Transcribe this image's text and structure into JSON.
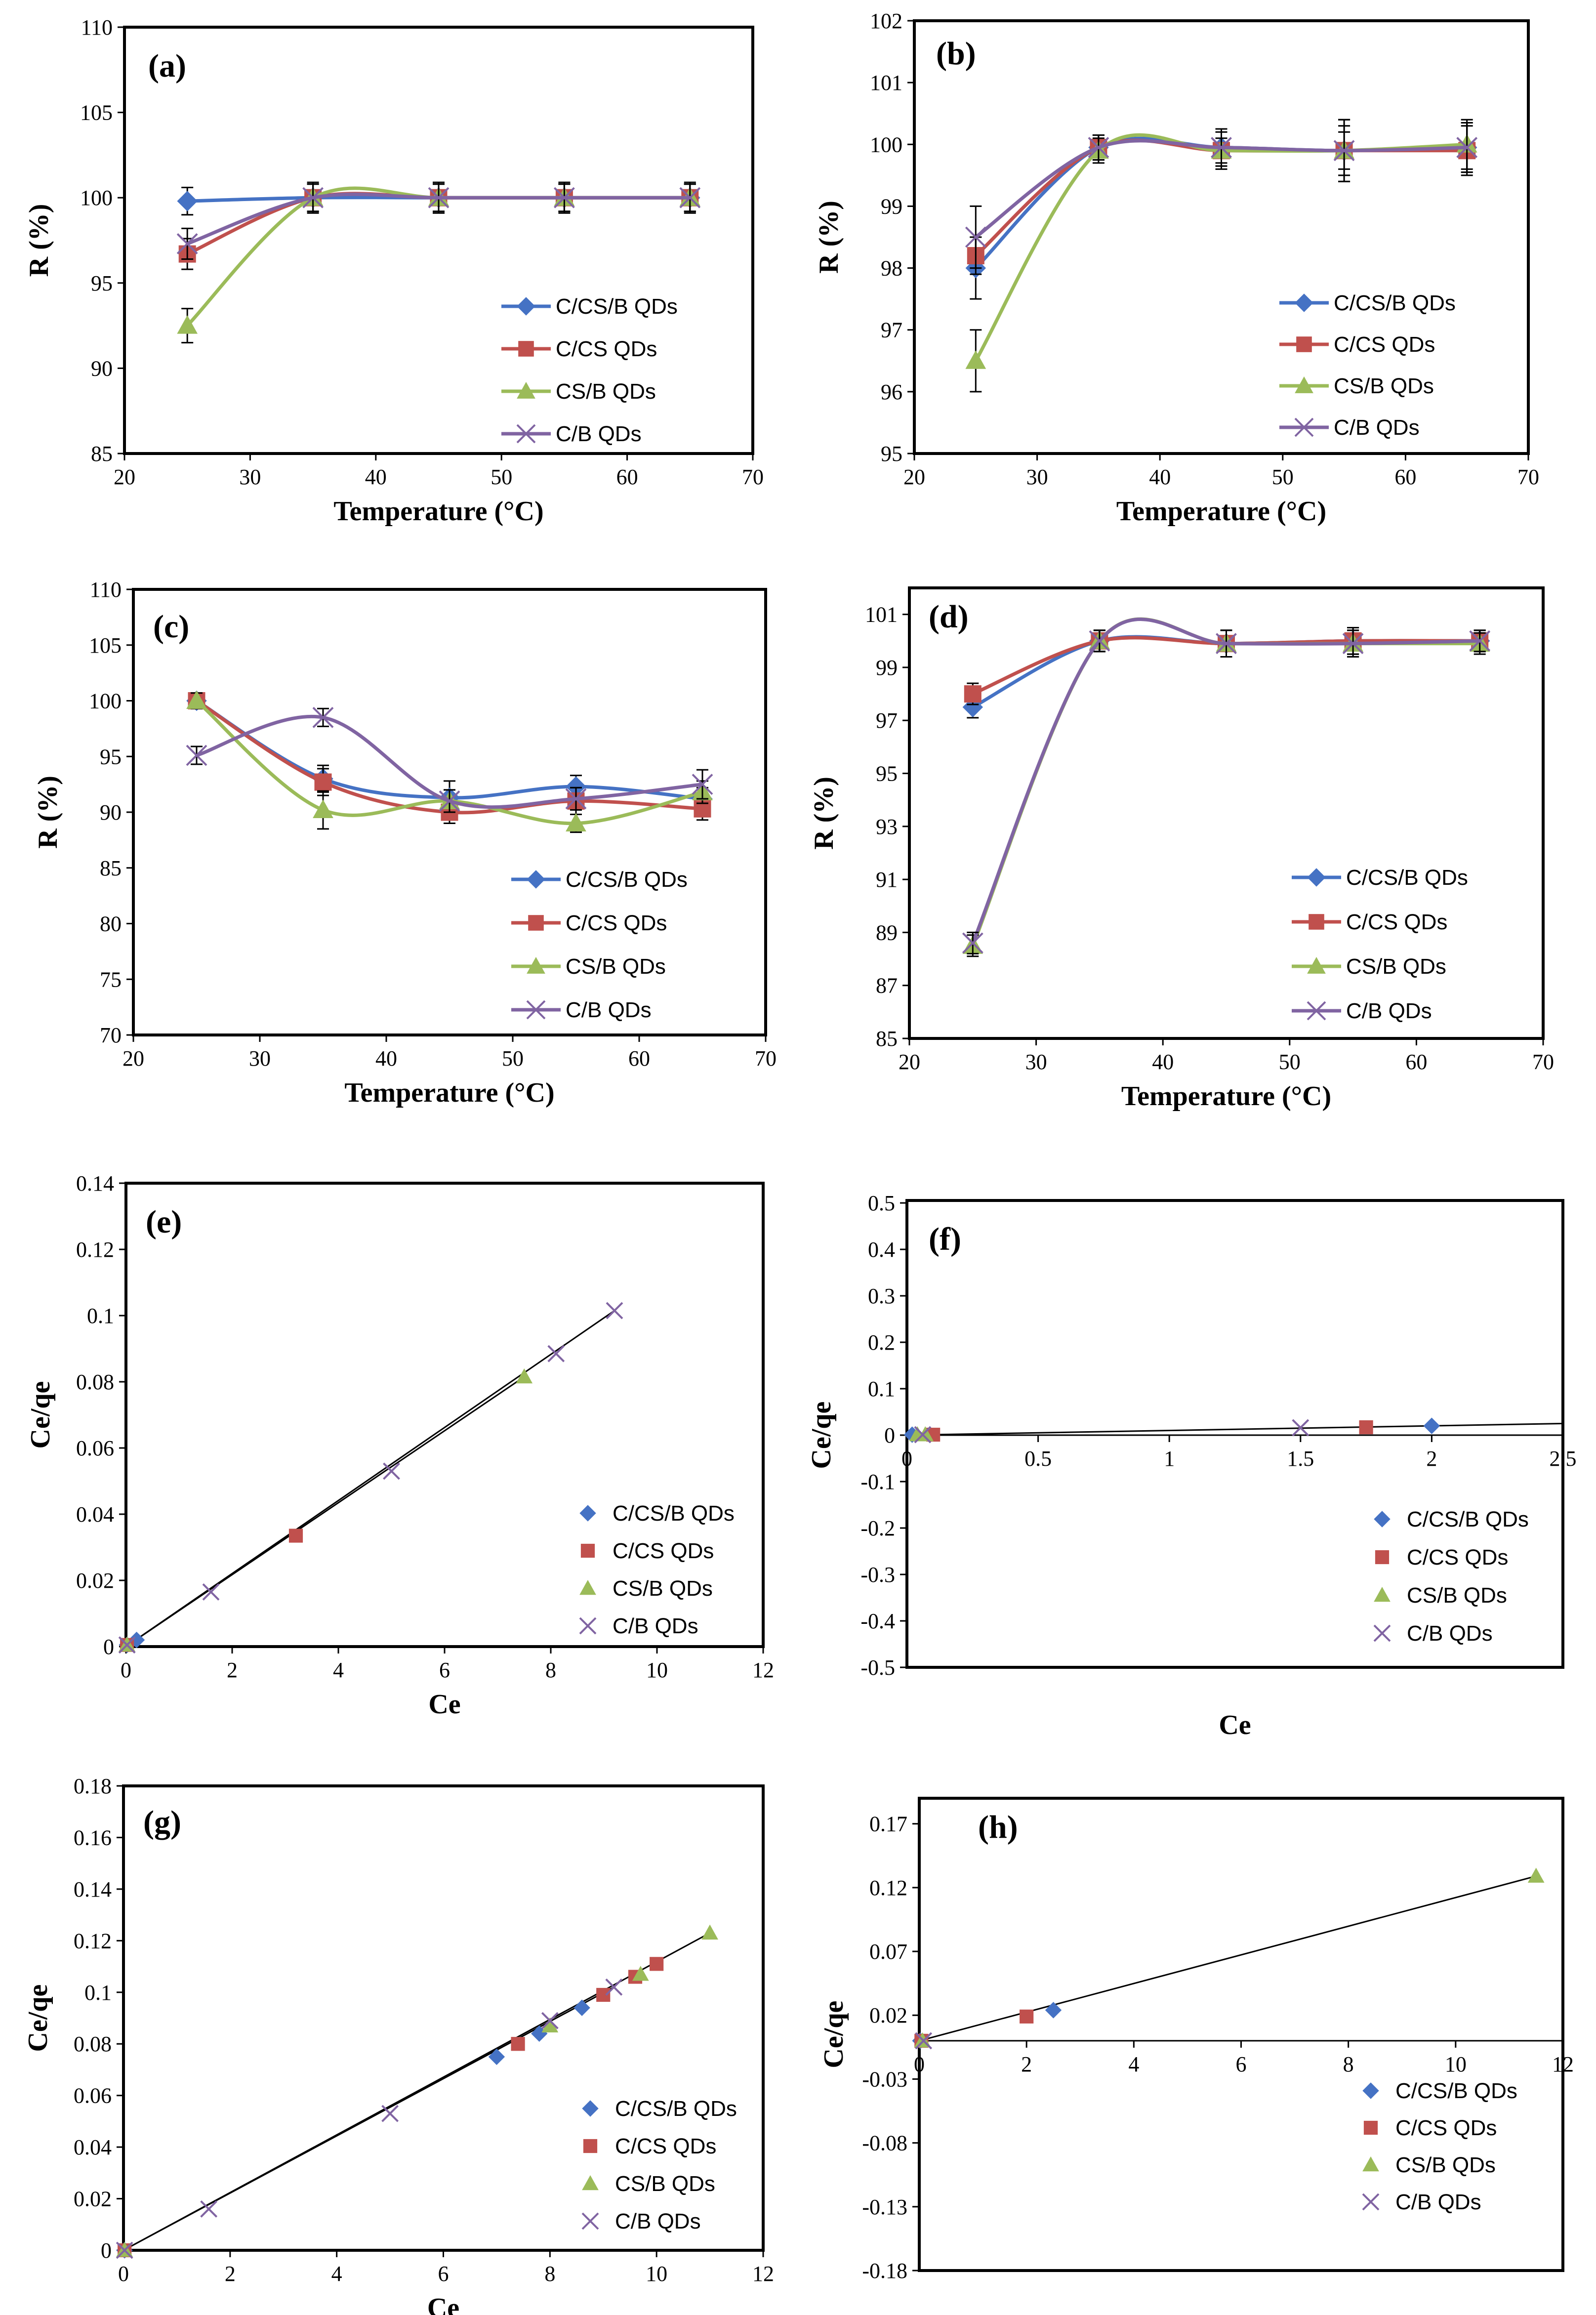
{
  "figure_title": "",
  "legend_labels": [
    "C/CS/B QDs",
    "C/CS QDs",
    "CS/B QDs",
    "C/B QDs"
  ],
  "series_colors": {
    "C/CS/B QDs": "#4572C4",
    "C/CS QDs": "#C0504D",
    "CS/B QDs": "#9BBB59",
    "C/B QDs": "#8064A2"
  },
  "chart_data": [
    {
      "id": "a",
      "panel_label": "(a)",
      "type": "line",
      "xlabel": "Temperature (°C)",
      "ylabel": "R (%)",
      "xlim": [
        20,
        70
      ],
      "ylim": [
        85,
        110
      ],
      "xticks": [
        "20",
        "30",
        "40",
        "50",
        "60",
        "70"
      ],
      "yticks": [
        "85",
        "90",
        "95",
        "100",
        "105",
        "110"
      ],
      "x": [
        25,
        35,
        45,
        55,
        65
      ],
      "series": [
        {
          "name": "C/CS/B QDs",
          "values": [
            99.8,
            100.0,
            100.0,
            100.0,
            100.0
          ],
          "err": [
            0.8,
            0.8,
            0.8,
            0.8,
            0.8
          ]
        },
        {
          "name": "C/CS QDs",
          "values": [
            96.7,
            100.0,
            100.0,
            100.0,
            100.0
          ],
          "err": [
            0.9,
            0.9,
            0.9,
            0.9,
            0.9
          ]
        },
        {
          "name": "CS/B QDs",
          "values": [
            92.5,
            100.0,
            100.0,
            100.0,
            100.0
          ],
          "err": [
            1.0,
            0.8,
            0.8,
            0.8,
            0.8
          ]
        },
        {
          "name": "C/B QDs",
          "values": [
            97.3,
            100.0,
            100.0,
            100.0,
            100.0
          ],
          "err": [
            0.9,
            0.8,
            0.8,
            0.8,
            0.8
          ]
        }
      ]
    },
    {
      "id": "b",
      "panel_label": "(b)",
      "type": "line",
      "xlabel": "Temperature (°C)",
      "ylabel": "R (%)",
      "xlim": [
        20,
        70
      ],
      "ylim": [
        95,
        102
      ],
      "xticks": [
        "20",
        "30",
        "40",
        "50",
        "60",
        "70"
      ],
      "yticks": [
        "95",
        "96",
        "97",
        "98",
        "99",
        "100",
        "101",
        "102"
      ],
      "x": [
        25,
        35,
        45,
        55,
        65
      ],
      "series": [
        {
          "name": "C/CS/B QDs",
          "values": [
            98.0,
            99.95,
            99.95,
            99.9,
            99.95
          ],
          "err": [
            0.5,
            0.2,
            0.3,
            0.5,
            0.4
          ]
        },
        {
          "name": "C/CS QDs",
          "values": [
            98.2,
            99.95,
            99.9,
            99.9,
            99.9
          ],
          "err": [
            0.3,
            0.2,
            0.2,
            0.4,
            0.4
          ]
        },
        {
          "name": "CS/B QDs",
          "values": [
            96.5,
            99.9,
            99.9,
            99.9,
            100.0
          ],
          "err": [
            0.5,
            0.2,
            0.3,
            0.3,
            0.4
          ]
        },
        {
          "name": "C/B QDs",
          "values": [
            98.5,
            99.95,
            99.95,
            99.9,
            99.95
          ],
          "err": [
            0.5,
            0.2,
            0.3,
            0.5,
            0.4
          ]
        }
      ]
    },
    {
      "id": "c",
      "panel_label": "(c)",
      "type": "line",
      "xlabel": "Temperature (°C)",
      "ylabel": "R (%)",
      "xlim": [
        20,
        70
      ],
      "ylim": [
        70,
        110
      ],
      "xticks": [
        "20",
        "30",
        "40",
        "50",
        "60",
        "70"
      ],
      "yticks": [
        "70",
        "75",
        "80",
        "85",
        "90",
        "95",
        "100",
        "105",
        "110"
      ],
      "x": [
        25,
        35,
        45,
        55,
        65
      ],
      "series": [
        {
          "name": "C/CS/B QDs",
          "values": [
            100.0,
            93.0,
            91.3,
            92.3,
            91.2
          ],
          "err": [
            0.7,
            1.2,
            1.5,
            1.0,
            1.0
          ]
        },
        {
          "name": "C/CS QDs",
          "values": [
            100.0,
            92.7,
            90.0,
            91.0,
            90.3
          ],
          "err": [
            0.7,
            1.2,
            1.0,
            1.2,
            1.0
          ]
        },
        {
          "name": "CS/B QDs",
          "values": [
            100.0,
            90.2,
            91.0,
            89.0,
            91.8
          ],
          "err": [
            0.7,
            1.7,
            1.0,
            0.8,
            1.0
          ]
        },
        {
          "name": "C/B QDs",
          "values": [
            95.1,
            98.5,
            91.0,
            91.2,
            92.5
          ],
          "err": [
            0.8,
            0.8,
            1.0,
            1.0,
            1.3
          ]
        }
      ]
    },
    {
      "id": "d",
      "panel_label": "(d)",
      "type": "line",
      "xlabel": "Temperature (°C)",
      "ylabel": "R (%)",
      "xlim": [
        20,
        70
      ],
      "ylim": [
        85,
        102
      ],
      "xticks": [
        "20",
        "30",
        "40",
        "50",
        "60",
        "70"
      ],
      "yticks": [
        "85",
        "87",
        "89",
        "91",
        "93",
        "95",
        "97",
        "99",
        "101"
      ],
      "x": [
        25,
        35,
        45,
        55,
        65
      ],
      "series": [
        {
          "name": "C/CS/B QDs",
          "values": [
            97.5,
            100.0,
            99.9,
            100.0,
            100.0
          ],
          "err": [
            0.4,
            0.4,
            0.5,
            0.5,
            0.4
          ]
        },
        {
          "name": "C/CS QDs",
          "values": [
            98.0,
            100.0,
            99.9,
            100.0,
            100.0
          ],
          "err": [
            0.4,
            0.4,
            0.5,
            0.5,
            0.4
          ]
        },
        {
          "name": "CS/B QDs",
          "values": [
            88.5,
            100.0,
            99.9,
            99.9,
            99.9
          ],
          "err": [
            0.4,
            0.4,
            0.5,
            0.5,
            0.4
          ]
        },
        {
          "name": "C/B QDs",
          "values": [
            88.6,
            100.0,
            99.9,
            99.9,
            100.0
          ],
          "err": [
            0.4,
            0.4,
            0.5,
            0.5,
            0.4
          ]
        }
      ]
    },
    {
      "id": "e",
      "panel_label": "(e)",
      "type": "scatter",
      "xlabel": "Ce",
      "ylabel": "Ce/qe",
      "xlim": [
        0,
        12
      ],
      "ylim": [
        0,
        0.14
      ],
      "xticks": [
        "0",
        "2",
        "4",
        "6",
        "8",
        "10",
        "12"
      ],
      "yticks": [
        "0",
        "0.02",
        "0.04",
        "0.06",
        "0.08",
        "0.1",
        "0.12",
        "0.14"
      ],
      "series": [
        {
          "name": "C/CS/B QDs",
          "x": [
            0.02,
            0.2
          ],
          "y": [
            0.0005,
            0.002
          ]
        },
        {
          "name": "C/CS QDs",
          "x": [
            0.02,
            3.2
          ],
          "y": [
            0.0005,
            0.0335
          ]
        },
        {
          "name": "CS/B QDs",
          "x": [
            0.02,
            7.5
          ],
          "y": [
            0.0005,
            0.0815
          ]
        },
        {
          "name": "C/B QDs",
          "x": [
            0.02,
            1.6,
            5.0,
            8.1,
            9.2
          ],
          "y": [
            0.0005,
            0.0165,
            0.053,
            0.0885,
            0.1015
          ]
        }
      ],
      "trendlines": [
        [
          [
            0,
            0
          ],
          [
            7.5,
            0.0815
          ]
        ],
        [
          [
            0,
            0
          ],
          [
            9.2,
            0.1015
          ]
        ]
      ]
    },
    {
      "id": "f",
      "panel_label": "(f)",
      "type": "scatter",
      "xlabel": "Ce",
      "ylabel": "Ce/qe",
      "xlim": [
        0,
        2.5
      ],
      "ylim": [
        -0.5,
        0.5
      ],
      "xticks": [
        "0",
        "0.5",
        "1",
        "1.5",
        "2",
        "2.5"
      ],
      "yticks": [
        "-0.5",
        "-0.4",
        "-0.3",
        "-0.2",
        "-0.1",
        "0",
        "0.1",
        "0.2",
        "0.3",
        "0.4",
        "0.5"
      ],
      "series": [
        {
          "name": "C/CS/B QDs",
          "x": [
            0.02,
            2.0
          ],
          "y": [
            0.001,
            0.02
          ]
        },
        {
          "name": "C/CS QDs",
          "x": [
            0.1,
            1.75
          ],
          "y": [
            0.001,
            0.017
          ]
        },
        {
          "name": "CS/B QDs",
          "x": [
            0.04,
            0.07
          ],
          "y": [
            0.001,
            0.001
          ]
        },
        {
          "name": "C/B QDs",
          "x": [
            0.06,
            1.5
          ],
          "y": [
            0.001,
            0.016
          ]
        }
      ],
      "trendlines": [
        [
          [
            0,
            0
          ],
          [
            2.5,
            0.025
          ]
        ]
      ]
    },
    {
      "id": "g",
      "panel_label": "(g)",
      "type": "scatter",
      "xlabel": "Ce",
      "ylabel": "Ce/qe",
      "xlim": [
        0,
        12
      ],
      "ylim": [
        0,
        0.18
      ],
      "xticks": [
        "0",
        "2",
        "4",
        "6",
        "8",
        "10",
        "12"
      ],
      "yticks": [
        "0",
        "0.02",
        "0.04",
        "0.06",
        "0.08",
        "0.1",
        "0.12",
        "0.14",
        "0.16",
        "0.18"
      ],
      "series": [
        {
          "name": "C/CS/B QDs",
          "x": [
            0.02,
            7.0,
            7.8,
            8.6
          ],
          "y": [
            0.0,
            0.075,
            0.084,
            0.094
          ]
        },
        {
          "name": "C/CS QDs",
          "x": [
            0.02,
            7.4,
            9.0,
            9.6,
            10.0
          ],
          "y": [
            0.0,
            0.08,
            0.099,
            0.106,
            0.111
          ]
        },
        {
          "name": "CS/B QDs",
          "x": [
            0.02,
            8.0,
            9.7,
            11.0
          ],
          "y": [
            0.0,
            0.087,
            0.107,
            0.123
          ]
        },
        {
          "name": "C/B QDs",
          "x": [
            0.02,
            1.6,
            5.0,
            8.0,
            9.2
          ],
          "y": [
            0.0,
            0.016,
            0.053,
            0.089,
            0.102
          ]
        }
      ],
      "trendlines": [
        [
          [
            0,
            0
          ],
          [
            11.0,
            0.123
          ]
        ],
        [
          [
            0,
            0
          ],
          [
            9.2,
            0.102
          ]
        ]
      ]
    },
    {
      "id": "h",
      "panel_label": "(h)",
      "type": "scatter",
      "xlabel": "Ce",
      "ylabel": "Ce/qe",
      "xlim": [
        0,
        12
      ],
      "ylim": [
        -0.18,
        0.19
      ],
      "xticks": [
        "0",
        "2",
        "4",
        "6",
        "8",
        "10",
        "12"
      ],
      "yticks": [
        "-0.18",
        "-0.13",
        "-0.08",
        "-0.03",
        "0.02",
        "0.07",
        "0.12",
        "0.17"
      ],
      "series": [
        {
          "name": "C/CS/B QDs",
          "x": [
            0.02,
            2.5
          ],
          "y": [
            0.0,
            0.024
          ]
        },
        {
          "name": "C/CS QDs",
          "x": [
            0.04,
            2.0
          ],
          "y": [
            0.0,
            0.019
          ]
        },
        {
          "name": "CS/B QDs",
          "x": [
            0.06,
            11.5
          ],
          "y": [
            0.0,
            0.129
          ]
        },
        {
          "name": "C/B QDs",
          "x": [
            0.08
          ],
          "y": [
            0.0
          ]
        }
      ],
      "trendlines": [
        [
          [
            0,
            0
          ],
          [
            11.5,
            0.129
          ]
        ]
      ]
    }
  ]
}
